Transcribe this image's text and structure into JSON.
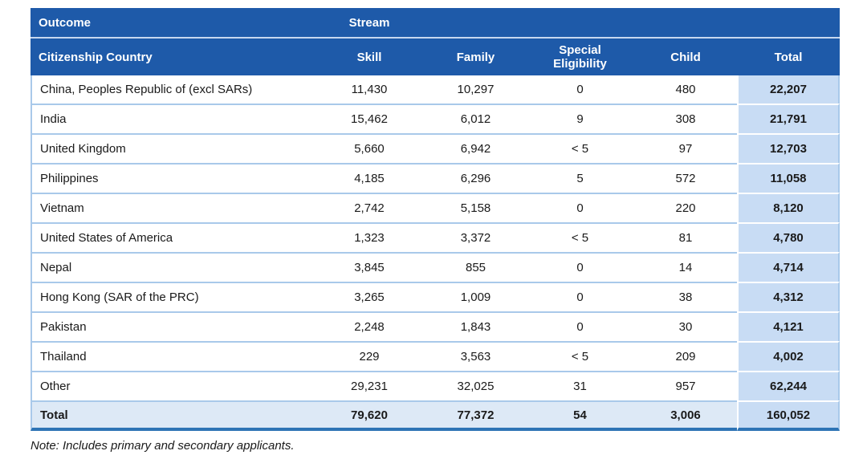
{
  "colors": {
    "header_blue": "#1E5AA9",
    "header_divider": "#C7D8EF",
    "row_separator": "#A9C9EA",
    "total_band": "#C8DCF4",
    "total_row_bg": "#DDE9F6",
    "bottom_border": "#2E74B5",
    "text": "#1A1A1A"
  },
  "table": {
    "group_header": {
      "outcome": "Outcome",
      "stream": "Stream"
    },
    "columns": [
      "Citizenship Country",
      "Skill",
      "Family",
      "Special Eligibility",
      "Child",
      "Total"
    ],
    "rows": [
      {
        "country": "China, Peoples Republic of (excl SARs)",
        "skill": "11,430",
        "family": "10,297",
        "special": "0",
        "child": "480",
        "total": "22,207"
      },
      {
        "country": "India",
        "skill": "15,462",
        "family": "6,012",
        "special": "9",
        "child": "308",
        "total": "21,791"
      },
      {
        "country": "United Kingdom",
        "skill": "5,660",
        "family": "6,942",
        "special": "< 5",
        "child": "97",
        "total": "12,703"
      },
      {
        "country": "Philippines",
        "skill": "4,185",
        "family": "6,296",
        "special": "5",
        "child": "572",
        "total": "11,058"
      },
      {
        "country": "Vietnam",
        "skill": "2,742",
        "family": "5,158",
        "special": "0",
        "child": "220",
        "total": "8,120"
      },
      {
        "country": "United States of America",
        "skill": "1,323",
        "family": "3,372",
        "special": "< 5",
        "child": "81",
        "total": "4,780"
      },
      {
        "country": "Nepal",
        "skill": "3,845",
        "family": "855",
        "special": "0",
        "child": "14",
        "total": "4,714"
      },
      {
        "country": "Hong Kong (SAR of the PRC)",
        "skill": "3,265",
        "family": "1,009",
        "special": "0",
        "child": "38",
        "total": "4,312"
      },
      {
        "country": "Pakistan",
        "skill": "2,248",
        "family": "1,843",
        "special": "0",
        "child": "30",
        "total": "4,121"
      },
      {
        "country": "Thailand",
        "skill": "229",
        "family": "3,563",
        "special": "< 5",
        "child": "209",
        "total": "4,002"
      },
      {
        "country": "Other",
        "skill": "29,231",
        "family": "32,025",
        "special": "31",
        "child": "957",
        "total": "62,244"
      }
    ],
    "total_row": {
      "country": "Total",
      "skill": "79,620",
      "family": "77,372",
      "special": "54",
      "child": "3,006",
      "total": "160,052"
    }
  },
  "note": "Note: Includes primary and secondary applicants."
}
